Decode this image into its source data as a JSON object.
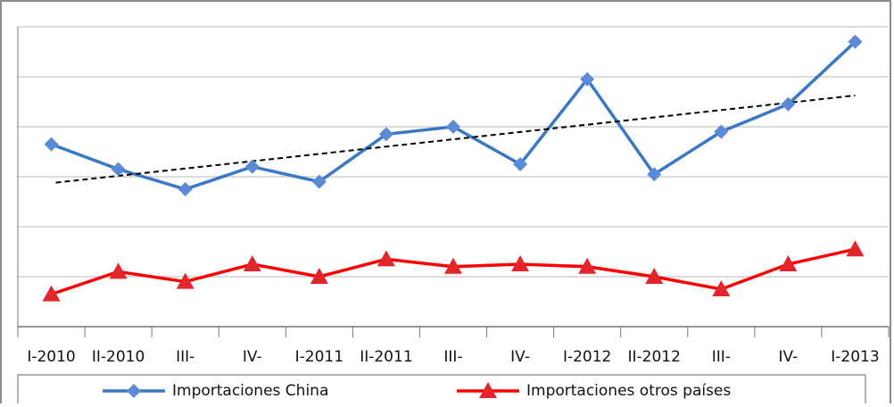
{
  "chart_data": {
    "type": "line",
    "categories": [
      "I-2010",
      "II-2010",
      "III-",
      "IV-",
      "I-2011",
      "II-2011",
      "III-",
      "IV-",
      "I-2012",
      "II-2012",
      "III-",
      "IV-",
      "I-2013"
    ],
    "series": [
      {
        "name": "Importaciones China",
        "color": "#3a78c4",
        "marker": "diamond",
        "marker_color": "#5b8bd6",
        "values": [
          3.65,
          3.15,
          2.75,
          3.2,
          2.9,
          3.85,
          4.0,
          3.25,
          4.95,
          3.05,
          3.9,
          4.45,
          5.7
        ],
        "trendline": true
      },
      {
        "name": "Importaciones otros países",
        "color": "#ff0000",
        "marker": "triangle",
        "marker_color": "#e3262b",
        "values": [
          0.65,
          1.1,
          0.9,
          1.25,
          1.0,
          1.35,
          1.2,
          1.25,
          1.2,
          1.0,
          0.75,
          1.25,
          1.55
        ]
      }
    ],
    "ylim": [
      0,
      6
    ],
    "yticks": [
      0,
      1,
      2,
      3,
      4,
      5,
      6
    ],
    "grid": true,
    "legend": "bottom"
  }
}
